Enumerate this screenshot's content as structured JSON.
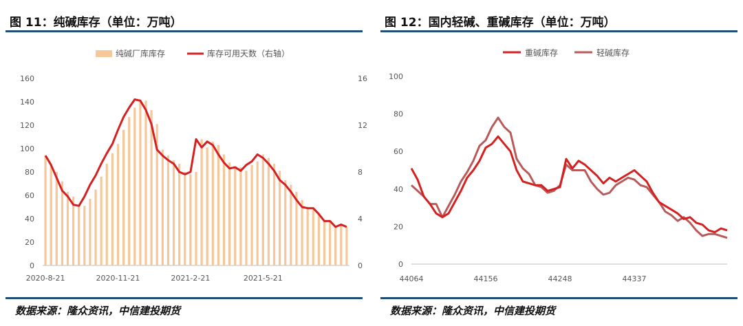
{
  "colors": {
    "bar": "#f5c79a",
    "heavy": "#d42020",
    "light": "#b85a5a",
    "rule": "#1f4e79"
  },
  "chart_data": [
    {
      "type": "bar",
      "title": "图 11：纯碱库存（单位：万吨）",
      "source": "数据来源：隆众资讯，中信建投期货",
      "legend": [
        "纯碱厂库库存",
        "库存可用天数（右轴）"
      ],
      "legend_placement": "top",
      "x_tick_labels": [
        "2020-8-21",
        "2020-11-21",
        "2021-2-21",
        "2021-5-21"
      ],
      "ylim": [
        0,
        160
      ],
      "y_ticks": [
        "0",
        "20",
        "40",
        "60",
        "80",
        "100",
        "120",
        "140",
        "160"
      ],
      "y2lim": [
        0,
        16
      ],
      "y2_ticks": [
        "0",
        "4",
        "8",
        "12",
        "16"
      ],
      "grid": false,
      "series": [
        {
          "name": "纯碱厂库库存",
          "kind": "bar",
          "values": [
            94,
            86,
            80,
            72,
            63,
            59,
            52,
            51,
            57,
            65,
            76,
            87,
            96,
            104,
            116,
            127,
            135,
            142,
            141,
            133,
            121,
            99,
            94,
            90,
            87,
            80,
            78,
            80,
            108,
            101,
            106,
            103,
            95,
            88,
            83,
            84,
            81,
            86,
            89,
            95,
            92,
            87,
            81,
            73,
            69,
            63,
            56,
            50,
            48,
            44,
            38,
            38,
            33,
            35,
            33
          ]
        },
        {
          "name": "库存可用天数（右轴）",
          "kind": "line",
          "axis": "right",
          "values": [
            9.4,
            8.6,
            7.5,
            6.4,
            5.9,
            5.2,
            5.1,
            5.9,
            6.9,
            7.7,
            8.7,
            9.6,
            10.4,
            11.6,
            12.7,
            13.5,
            14.2,
            14.1,
            13.3,
            12.1,
            9.9,
            9.4,
            9.0,
            8.7,
            8.0,
            7.8,
            8.0,
            10.8,
            10.1,
            10.6,
            10.3,
            9.5,
            8.8,
            8.3,
            8.4,
            8.1,
            8.6,
            8.9,
            9.5,
            9.2,
            8.7,
            8.1,
            7.3,
            6.9,
            6.3,
            5.6,
            5.0,
            4.9,
            4.9,
            4.4,
            3.8,
            3.8,
            3.3,
            3.5,
            3.3
          ]
        }
      ]
    },
    {
      "type": "line",
      "title": "图 12：国内轻碱、重碱库存（单位：万吨）",
      "source": "数据来源：隆众资讯，中信建投期货",
      "legend": [
        "重碱库存",
        "轻碱库存"
      ],
      "legend_placement": "top",
      "x_tick_labels": [
        "44064",
        "44156",
        "44248",
        "44337"
      ],
      "ylim": [
        0,
        100
      ],
      "y_ticks": [
        "0",
        "20",
        "40",
        "60",
        "80",
        "100"
      ],
      "grid": false,
      "series": [
        {
          "name": "重碱库存",
          "values": [
            51,
            45,
            36,
            32,
            27,
            25,
            27,
            33,
            39,
            46,
            50,
            55,
            62,
            64,
            68,
            64,
            60,
            50,
            44,
            43,
            42,
            42,
            39,
            40,
            41,
            56,
            51,
            55,
            53,
            50,
            47,
            43,
            46,
            44,
            46,
            48,
            50,
            47,
            44,
            38,
            33,
            31,
            29,
            27,
            24,
            25,
            22,
            21,
            18,
            17,
            19,
            18
          ]
        },
        {
          "name": "轻碱库存",
          "values": [
            42,
            39,
            36,
            32,
            32,
            25,
            31,
            37,
            44,
            49,
            55,
            63,
            66,
            73,
            78,
            73,
            70,
            56,
            51,
            48,
            42,
            41,
            38,
            39,
            42,
            53,
            50,
            50,
            50,
            44,
            40,
            37,
            38,
            42,
            44,
            46,
            45,
            42,
            41,
            37,
            33,
            28,
            26,
            23,
            25,
            22,
            18,
            15,
            16,
            16,
            15,
            14
          ]
        }
      ]
    }
  ]
}
